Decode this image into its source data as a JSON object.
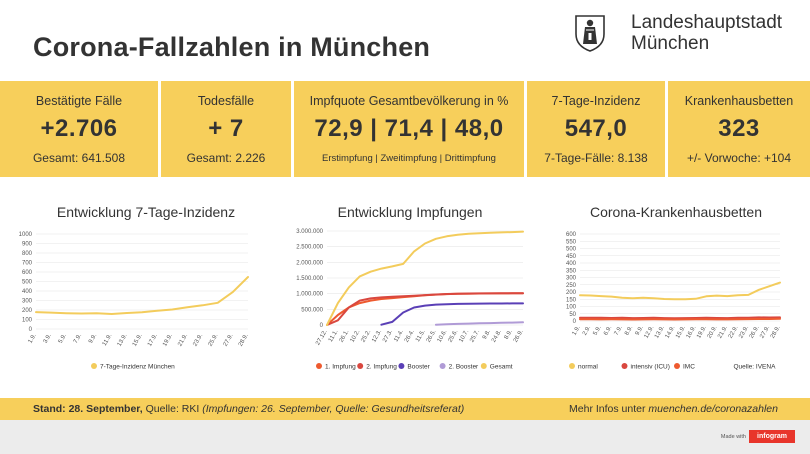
{
  "header": {
    "title": "Corona-Fallzahlen in München",
    "city_line1": "Landeshauptstadt",
    "city_line2": "München"
  },
  "kpis": {
    "cases": {
      "label": "Bestätigte Fälle",
      "value": "+2.706",
      "sub": "Gesamt: 641.508"
    },
    "deaths": {
      "label": "Todesfälle",
      "value": "+ 7",
      "sub": "Gesamt: 2.226"
    },
    "vaccination": {
      "label": "Impfquote Gesamtbevölkerung in %",
      "value": "72,9 | 71,4 | 48,0",
      "sub": "Erstimpfung  |  Zweitimpfung  |  Drittimpfung"
    },
    "incidence": {
      "label": "7-Tage-Inzidenz",
      "value": "547,0",
      "sub": "7-Tage-Fälle: 8.138"
    },
    "hospital": {
      "label": "Krankenhausbetten",
      "value": "323",
      "sub": "+/- Vorwoche: +104"
    }
  },
  "chart_data": [
    {
      "type": "line",
      "title": "Entwicklung 7-Tage-Inzidenz",
      "x": [
        "1.9.",
        "3.9.",
        "5.9.",
        "7.9.",
        "9.9.",
        "11.9.",
        "13.9.",
        "15.9.",
        "17.9.",
        "19.9.",
        "21.9.",
        "23.9.",
        "25.9.",
        "27.9.",
        "28.9."
      ],
      "series": [
        {
          "name": "7-Tage-Inzidenz München",
          "color": "#f3cc5c",
          "values": [
            178,
            173,
            166,
            163,
            165,
            158,
            168,
            176,
            192,
            205,
            228,
            250,
            276,
            390,
            547
          ]
        }
      ],
      "ylim": [
        0,
        1000
      ],
      "yticks": [
        "0",
        "100",
        "200",
        "300",
        "400",
        "500",
        "600",
        "700",
        "800",
        "900",
        "1000"
      ],
      "grid": true,
      "legend": "bottom"
    },
    {
      "type": "line",
      "title": "Entwicklung Impfungen",
      "x": [
        "27.12.",
        "11.1.",
        "26.1.",
        "10.2.",
        "25.2.",
        "12.3.",
        "27.3.",
        "11.4.",
        "26.4.",
        "11.5.",
        "26.5.",
        "10.6.",
        "25.6.",
        "10.7.",
        "25.7.",
        "9.8.",
        "24.8.",
        "8.9.",
        "26.9."
      ],
      "series": [
        {
          "name": "1. Impfung",
          "color": "#ee5a2f",
          "values": [
            0,
            320000,
            560000,
            700000,
            780000,
            830000,
            860000,
            890000,
            920000,
            950000,
            970000,
            985000,
            995000,
            1000000,
            1005000,
            1008000,
            1010000,
            1012000,
            1013000
          ]
        },
        {
          "name": "2. Impfung",
          "color": "#d9473f",
          "values": [
            0,
            150000,
            560000,
            780000,
            850000,
            880000,
            900000,
            915000,
            935000,
            955000,
            975000,
            990000,
            1000000,
            1005000,
            1008000,
            1010000,
            1011000,
            1012000,
            1013000
          ]
        },
        {
          "name": "Booster",
          "color": "#5a3fb6",
          "values": [
            null,
            null,
            null,
            null,
            null,
            10000,
            100000,
            400000,
            560000,
            620000,
            650000,
            665000,
            672000,
            678000,
            682000,
            685000,
            687000,
            688000,
            690000
          ]
        },
        {
          "name": "2. Booster",
          "color": "#b09bd6",
          "values": [
            null,
            null,
            null,
            null,
            null,
            null,
            null,
            null,
            null,
            null,
            10000,
            25000,
            35000,
            45000,
            55000,
            62000,
            70000,
            78000,
            85000
          ]
        },
        {
          "name": "Gesamt",
          "color": "#f3cc5c",
          "values": [
            0,
            700000,
            1200000,
            1550000,
            1700000,
            1800000,
            1870000,
            1950000,
            2350000,
            2600000,
            2750000,
            2830000,
            2880000,
            2910000,
            2930000,
            2945000,
            2955000,
            2965000,
            2980000
          ]
        }
      ],
      "ylim": [
        0,
        3000000
      ],
      "yticks": [
        "0",
        "500.000",
        "1.000.000",
        "1.500.000",
        "2.000.000",
        "2.500.000",
        "3.000.000"
      ],
      "grid": true,
      "legend": "bottom"
    },
    {
      "type": "line",
      "title": "Corona-Krankenhausbetten",
      "x": [
        "1.9.",
        "2.9.",
        "5.9.",
        "6.9.",
        "7.9.",
        "8.9.",
        "9.9.",
        "12.9.",
        "13.9.",
        "14.9.",
        "15.9.",
        "16.9.",
        "19.9.",
        "20.9.",
        "21.9.",
        "22.9.",
        "23.9.",
        "26.9.",
        "27.9.",
        "28.9."
      ],
      "series": [
        {
          "name": "normal",
          "color": "#f3cc5c",
          "values": [
            178,
            176,
            172,
            168,
            160,
            157,
            160,
            157,
            152,
            150,
            150,
            153,
            170,
            175,
            172,
            178,
            180,
            215,
            240,
            265
          ]
        },
        {
          "name": "intensiv (ICU)",
          "color": "#d9473f",
          "values": [
            22,
            23,
            22,
            21,
            22,
            20,
            21,
            22,
            20,
            19,
            20,
            21,
            22,
            21,
            20,
            22,
            23,
            25,
            24,
            25
          ]
        },
        {
          "name": "IMC",
          "color": "#ee5a2f",
          "values": [
            12,
            12,
            11,
            12,
            11,
            10,
            11,
            12,
            11,
            10,
            11,
            12,
            12,
            11,
            11,
            12,
            13,
            14,
            14,
            15
          ]
        }
      ],
      "ylim": [
        0,
        600
      ],
      "yticks": [
        "0",
        "50",
        "100",
        "150",
        "200",
        "250",
        "300",
        "350",
        "400",
        "450",
        "500",
        "550",
        "600"
      ],
      "grid": true,
      "legend": "bottom",
      "source_note": "Quelle: IVENA"
    }
  ],
  "footer": {
    "stand_bold": "Stand: 28. September,",
    "stand_rest": " Quelle: RKI ",
    "stand_italic": "(Impfungen: 26. September, Quelle: Gesundheitsreferat)",
    "more_info": "Mehr Infos unter ",
    "more_link": "muenchen.de/coronazahlen"
  },
  "branding": {
    "made_with": "Made with",
    "infogram": "infogram"
  },
  "colors": {
    "accent": "#f7cf5b",
    "text": "#333333"
  }
}
